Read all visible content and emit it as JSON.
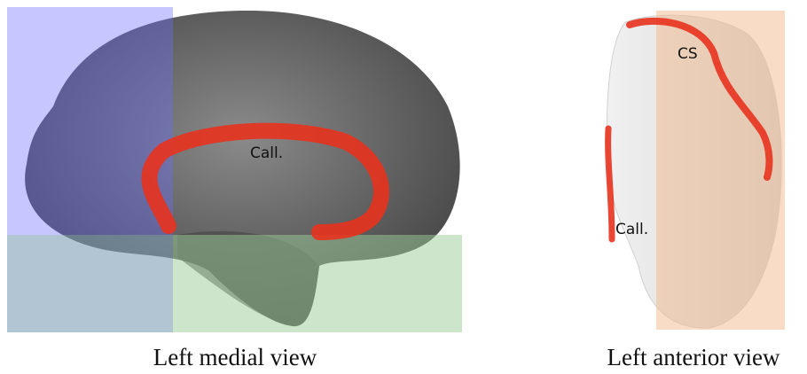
{
  "panels": [
    {
      "caption": "Left medial view",
      "labels": [
        "Call."
      ]
    },
    {
      "caption": "Left anterior view",
      "labels": [
        "CS",
        "Call."
      ]
    }
  ]
}
